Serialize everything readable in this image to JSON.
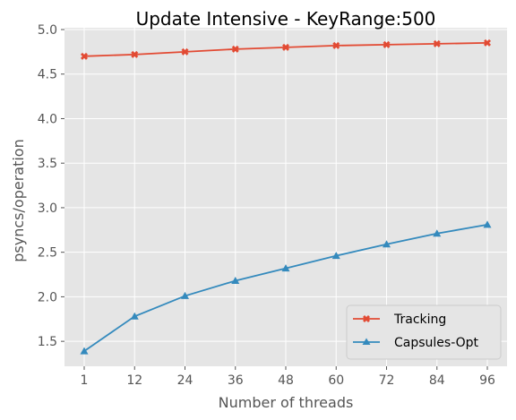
{
  "chart_data": {
    "type": "line",
    "title": "Update Intensive - KeyRange:500",
    "xlabel": "Number of threads",
    "ylabel": "psyncs/operation",
    "categories": [
      "1",
      "12",
      "24",
      "36",
      "48",
      "60",
      "72",
      "84",
      "96"
    ],
    "yticks": [
      "1.5",
      "2.0",
      "2.5",
      "3.0",
      "3.5",
      "4.0",
      "4.5",
      "5.0"
    ],
    "ylim": [
      1.22,
      5.02
    ],
    "grid": true,
    "legend_position": "lower-right",
    "series": [
      {
        "name": "Tracking",
        "color": "#E24A33",
        "marker": "x",
        "values": [
          4.7,
          4.72,
          4.75,
          4.78,
          4.8,
          4.82,
          4.83,
          4.84,
          4.85
        ]
      },
      {
        "name": "Capsules-Opt",
        "color": "#348ABD",
        "marker": "triangle",
        "values": [
          1.39,
          1.78,
          2.01,
          2.18,
          2.32,
          2.46,
          2.59,
          2.71,
          2.81
        ]
      }
    ]
  }
}
